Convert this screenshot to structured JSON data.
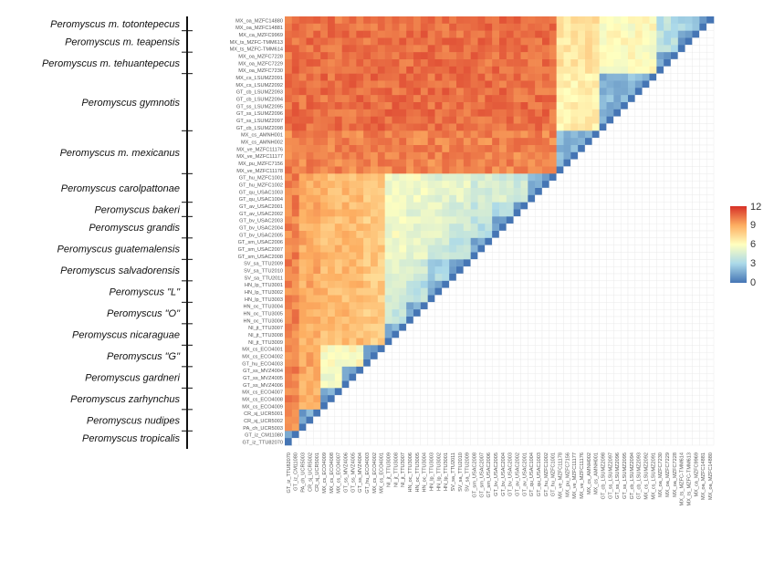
{
  "chart_data": {
    "type": "heatmap",
    "title": "",
    "legend": {
      "position": "right",
      "ticks": [
        "12",
        "9",
        "6",
        "3",
        "0"
      ],
      "range": [
        0,
        12
      ]
    },
    "color_scale": [
      "#4575b4",
      "#abd9e9",
      "#ffffbf",
      "#fdae61",
      "#d73027"
    ],
    "groups": [
      {
        "name": "Peromyscus m. totontepecus",
        "n": 2
      },
      {
        "name": "Peromyscus m. teapensis",
        "n": 3
      },
      {
        "name": "Peromyscus m. tehuantepecus",
        "n": 3
      },
      {
        "name": "Peromyscus gymnotis",
        "n": 8
      },
      {
        "name": "Peromyscus m. mexicanus",
        "n": 6
      },
      {
        "name": "Peromyscus carolpattonae",
        "n": 4
      },
      {
        "name": "Peromyscus bakeri",
        "n": 2
      },
      {
        "name": "Peromyscus grandis",
        "n": 3
      },
      {
        "name": "Peromyscus guatemalensis",
        "n": 3
      },
      {
        "name": "Peromyscus salvadorensis",
        "n": 3
      },
      {
        "name": "Peromyscus \"L\"",
        "n": 3
      },
      {
        "name": "Peromyscus \"O\"",
        "n": 3
      },
      {
        "name": "Peromyscus nicaraguae",
        "n": 3
      },
      {
        "name": "Peromyscus \"G\"",
        "n": 3
      },
      {
        "name": "Peromyscus gardneri",
        "n": 3
      },
      {
        "name": "Peromyscus zarhynchus",
        "n": 3
      },
      {
        "name": "Peromyscus nudipes",
        "n": 3
      },
      {
        "name": "Peromyscus tropicalis",
        "n": 2
      }
    ],
    "group_mean_distance": [
      [
        1.5,
        3,
        3.5,
        6,
        7,
        10.5,
        10.5,
        10.5,
        10.5,
        10.5,
        10.5,
        10.5,
        10.5,
        10.5,
        10.5,
        10.5,
        10.5,
        10.5
      ],
      [
        3,
        1.5,
        3.5,
        6,
        7,
        10.5,
        10.5,
        10.5,
        10.5,
        10.5,
        10.5,
        10.5,
        10.5,
        10.5,
        10.5,
        10.5,
        10.5,
        10.5
      ],
      [
        3.5,
        3.5,
        1.5,
        6,
        7,
        10.5,
        10.5,
        10.5,
        10.5,
        10.5,
        10.5,
        10.5,
        10.5,
        10.5,
        10.5,
        10.5,
        10.5,
        10.5
      ],
      [
        6,
        6,
        6,
        2,
        6.5,
        10.5,
        10.5,
        10.5,
        10.5,
        10.5,
        10.5,
        10.5,
        10.5,
        10.5,
        10.5,
        10.5,
        10.5,
        10.5
      ],
      [
        7,
        7,
        7,
        6.5,
        2,
        10,
        10,
        10,
        10,
        10,
        10,
        10,
        10,
        10,
        10,
        10,
        10,
        10
      ],
      [
        10.5,
        10.5,
        10.5,
        10.5,
        10,
        1.5,
        4,
        4.5,
        4.5,
        5,
        5,
        5.5,
        5.5,
        8,
        8.5,
        8.5,
        9,
        10
      ],
      [
        10.5,
        10.5,
        10.5,
        10.5,
        10,
        4,
        1.5,
        3.5,
        4,
        4.5,
        5,
        5,
        5.5,
        8,
        8.5,
        8.5,
        9,
        10
      ],
      [
        10.5,
        10.5,
        10.5,
        10.5,
        10,
        4.5,
        3.5,
        1.5,
        3.5,
        4.5,
        5,
        5,
        5.5,
        8,
        8.5,
        8.5,
        9,
        10
      ],
      [
        10.5,
        10.5,
        10.5,
        10.5,
        10,
        4.5,
        4,
        3.5,
        1.5,
        3.5,
        4.5,
        5,
        5.5,
        8,
        8.5,
        8.5,
        9,
        10
      ],
      [
        10.5,
        10.5,
        10.5,
        10.5,
        10,
        5,
        4.5,
        4.5,
        3.5,
        1.5,
        3,
        4.5,
        5,
        8,
        8.5,
        8.5,
        9,
        10
      ],
      [
        10.5,
        10.5,
        10.5,
        10.5,
        10,
        5,
        5,
        5,
        4.5,
        3,
        1.5,
        3.5,
        4.5,
        8,
        8.5,
        8.5,
        9,
        10
      ],
      [
        10.5,
        10.5,
        10.5,
        10.5,
        10,
        5.5,
        5,
        5,
        5,
        4.5,
        3.5,
        1.5,
        4,
        8,
        8.5,
        8.5,
        9,
        10
      ],
      [
        10.5,
        10.5,
        10.5,
        10.5,
        10,
        5.5,
        5.5,
        5.5,
        5.5,
        5,
        4.5,
        4,
        1.5,
        8,
        8.5,
        8.5,
        9,
        10
      ],
      [
        10.5,
        10.5,
        10.5,
        10.5,
        10,
        8,
        8,
        8,
        8,
        8,
        8,
        8,
        8,
        1.5,
        6,
        6,
        9,
        10
      ],
      [
        10.5,
        10.5,
        10.5,
        10.5,
        10,
        8.5,
        8.5,
        8.5,
        8.5,
        8.5,
        8.5,
        8.5,
        8.5,
        6,
        1.5,
        5.5,
        9,
        10
      ],
      [
        10.5,
        10.5,
        10.5,
        10.5,
        10,
        8.5,
        8.5,
        8.5,
        8.5,
        8.5,
        8.5,
        8.5,
        8.5,
        6,
        5.5,
        1.5,
        9,
        10
      ],
      [
        10.5,
        10.5,
        10.5,
        10.5,
        10,
        9,
        9,
        9,
        9,
        9,
        9,
        9,
        9,
        9,
        9,
        9,
        1.5,
        9.5
      ],
      [
        10.5,
        10.5,
        10.5,
        10.5,
        10,
        10,
        10,
        10,
        10,
        10,
        10,
        10,
        10,
        10,
        10,
        10,
        9.5,
        1.5
      ]
    ],
    "sample_labels": [
      "MX_oa_MZFC14880",
      "MX_oa_MZFC14881",
      "MX_ca_MZFC9969",
      "MX_ts_MZFC-TMM613",
      "MX_ts_MZFC-TMM614",
      "MX_oa_MZFC7228",
      "MX_oa_MZFC7229",
      "MX_oa_MZFC7230",
      "MX_cs_LSUMZ2091",
      "MX_cs_LSUMZ2092",
      "GT_cb_LSUMZ2093",
      "GT_cb_LSUMZ2094",
      "GT_ss_LSUMZ2095",
      "GT_ss_LSUMZ2096",
      "GT_ss_LSUMZ2097",
      "GT_cb_LSUMZ2098",
      "MX_cs_AMNH001",
      "MX_cs_AMNH002",
      "MX_ve_MZFC11176",
      "MX_ve_MZFC11177",
      "MX_pu_MZFC7156",
      "MX_ve_MZFC11178",
      "GT_hu_MZFC1001",
      "GT_hu_MZFC1002",
      "GT_qu_USAC1003",
      "GT_qu_USAC1004",
      "GT_av_USAC2001",
      "GT_av_USAC2002",
      "GT_bv_USAC2003",
      "GT_bv_USAC2004",
      "GT_bv_USAC2005",
      "GT_sm_USAC2006",
      "GT_sm_USAC2007",
      "GT_sm_USAC2008",
      "SV_sa_TTU2009",
      "SV_sa_TTU2010",
      "SV_sa_TTU2011",
      "HN_lp_TTU3001",
      "HN_lp_TTU3002",
      "HN_lp_TTU3003",
      "HN_oc_TTU3004",
      "HN_oc_TTU3005",
      "HN_oc_TTU3006",
      "NI_jt_TTU3007",
      "NI_jt_TTU3008",
      "NI_jt_TTU3009",
      "MX_cs_ECO4001",
      "MX_cs_ECO4002",
      "GT_hu_ECO4003",
      "GT_ss_MVZ4004",
      "GT_ss_MVZ4005",
      "GT_ss_MVZ4006",
      "MX_cs_ECO4007",
      "MX_cs_ECO4008",
      "MX_cs_ECO4009",
      "CR_sj_UCR5001",
      "CR_sj_UCR5002",
      "PA_ch_UCR5003",
      "GT_iz_CM11080",
      "GT_iz_TTU82070"
    ]
  }
}
